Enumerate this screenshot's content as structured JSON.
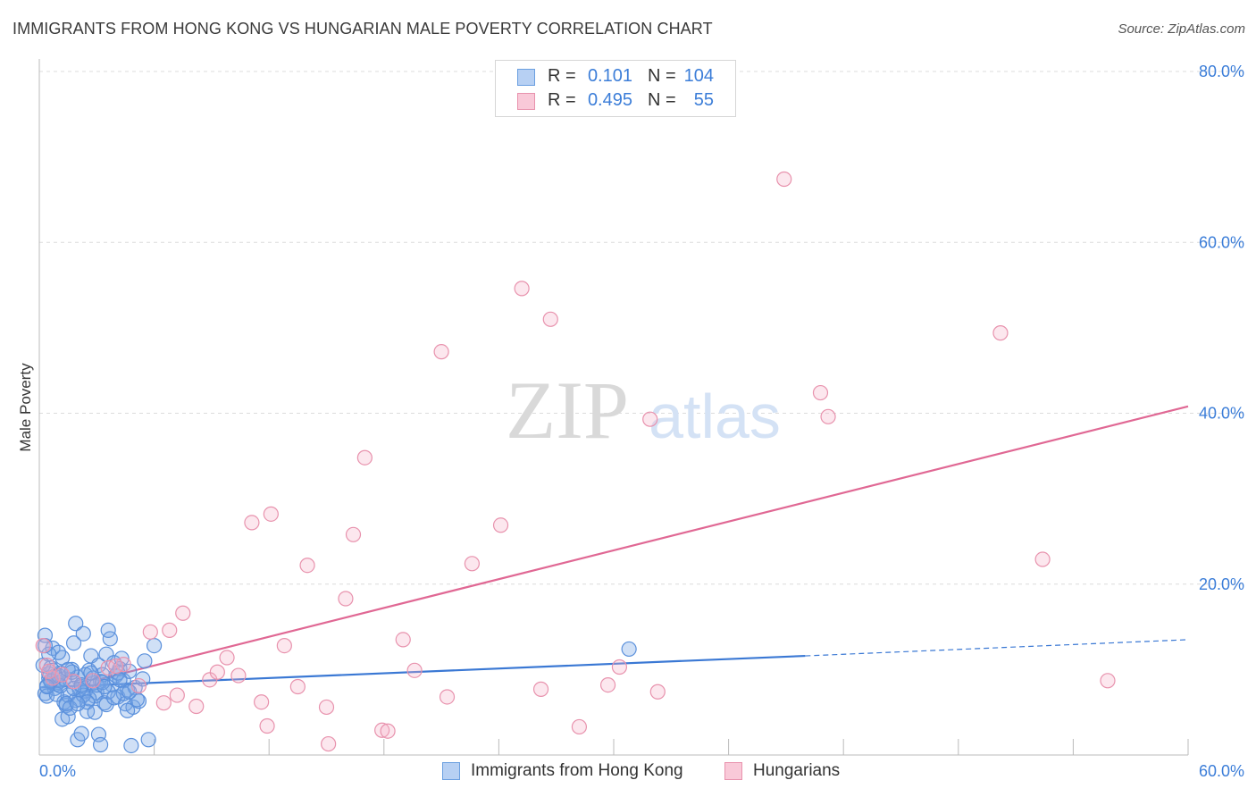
{
  "title": "IMMIGRANTS FROM HONG KONG VS HUNGARIAN MALE POVERTY CORRELATION CHART",
  "source": "Source: ZipAtlas.com",
  "watermark": {
    "zip": "ZIP",
    "atlas": "atlas"
  },
  "legend_top": [
    {
      "r_label": "R =",
      "r_value": "0.101",
      "n_label": "N =",
      "n_value": "104",
      "fill": "#b7d0f3",
      "stroke": "#6a9fe0"
    },
    {
      "r_label": "R =",
      "r_value": "0.495",
      "n_label": "N =",
      "n_value": "55",
      "fill": "#f9c9d8",
      "stroke": "#e892ad"
    }
  ],
  "legend_bottom": [
    {
      "label": "Immigrants from Hong Kong",
      "fill": "#b7d0f3",
      "stroke": "#6a9fe0"
    },
    {
      "label": "Hungarians",
      "fill": "#f9c9d8",
      "stroke": "#e892ad"
    }
  ],
  "chart_data": {
    "type": "scatter",
    "title": "IMMIGRANTS FROM HONG KONG VS HUNGARIAN MALE POVERTY CORRELATION CHART",
    "xlabel": "",
    "ylabel": "Male Poverty",
    "xlim": [
      0,
      60
    ],
    "ylim": [
      0,
      80
    ],
    "x_tick_labels": [
      "0.0%",
      "60.0%"
    ],
    "y_ticks": [
      20,
      40,
      60,
      80
    ],
    "y_tick_labels": [
      "20.0%",
      "40.0%",
      "60.0%",
      "80.0%"
    ],
    "grid": true,
    "series": [
      {
        "name": "Immigrants from Hong Kong",
        "color": "#3a78d4",
        "point_fill": "rgba(120,165,230,0.35)",
        "point_stroke": "#5a90dc",
        "trend": {
          "x0": 0,
          "y0": 7.9,
          "x1": 40,
          "y1": 11.6,
          "dashed_to": 60,
          "dashed_y": 13.5
        },
        "points": [
          [
            0.3,
            7.2
          ],
          [
            0.4,
            8.1
          ],
          [
            0.5,
            9.0
          ],
          [
            0.6,
            10.2
          ],
          [
            0.7,
            12.5
          ],
          [
            0.3,
            14.0
          ],
          [
            0.8,
            7.8
          ],
          [
            1.0,
            8.5
          ],
          [
            1.1,
            9.6
          ],
          [
            1.2,
            11.4
          ],
          [
            1.3,
            6.2
          ],
          [
            1.4,
            5.8
          ],
          [
            1.5,
            7.0
          ],
          [
            1.6,
            8.8
          ],
          [
            1.7,
            10.0
          ],
          [
            1.8,
            13.1
          ],
          [
            1.9,
            15.4
          ],
          [
            2.0,
            9.1
          ],
          [
            2.1,
            6.5
          ],
          [
            2.2,
            8.0
          ],
          [
            2.3,
            14.2
          ],
          [
            2.4,
            7.5
          ],
          [
            2.5,
            5.1
          ],
          [
            2.6,
            9.9
          ],
          [
            2.7,
            11.6
          ],
          [
            2.8,
            8.4
          ],
          [
            2.9,
            6.9
          ],
          [
            3.0,
            7.3
          ],
          [
            3.1,
            10.5
          ],
          [
            3.2,
            8.6
          ],
          [
            3.3,
            9.4
          ],
          [
            3.4,
            6.1
          ],
          [
            3.5,
            11.8
          ],
          [
            3.6,
            14.6
          ],
          [
            3.7,
            13.6
          ],
          [
            3.8,
            8.2
          ],
          [
            3.9,
            10.8
          ],
          [
            4.0,
            9.3
          ],
          [
            4.1,
            6.8
          ],
          [
            4.2,
            10.1
          ],
          [
            4.3,
            11.3
          ],
          [
            4.4,
            8.7
          ],
          [
            4.5,
            6.0
          ],
          [
            4.6,
            7.6
          ],
          [
            4.7,
            9.8
          ],
          [
            4.9,
            5.6
          ],
          [
            5.0,
            7.9
          ],
          [
            5.2,
            6.3
          ],
          [
            5.4,
            8.9
          ],
          [
            5.5,
            11.0
          ],
          [
            0.5,
            9.5
          ],
          [
            0.9,
            8.3
          ],
          [
            1.2,
            4.2
          ],
          [
            1.5,
            4.5
          ],
          [
            2.0,
            1.8
          ],
          [
            2.2,
            2.5
          ],
          [
            3.1,
            2.4
          ],
          [
            3.2,
            1.2
          ],
          [
            4.8,
            1.1
          ],
          [
            5.7,
            1.8
          ],
          [
            6.0,
            12.8
          ],
          [
            1.0,
            12.0
          ],
          [
            0.6,
            8.6
          ],
          [
            0.8,
            9.2
          ],
          [
            1.3,
            8.9
          ],
          [
            1.7,
            9.7
          ],
          [
            2.4,
            9.4
          ],
          [
            2.8,
            9.0
          ],
          [
            0.4,
            6.9
          ],
          [
            0.9,
            7.1
          ],
          [
            1.9,
            6.4
          ],
          [
            2.1,
            7.7
          ],
          [
            2.6,
            6.6
          ],
          [
            3.5,
            5.9
          ],
          [
            0.5,
            11.8
          ],
          [
            1.4,
            6.0
          ],
          [
            1.6,
            5.5
          ],
          [
            2.3,
            7.0
          ],
          [
            3.0,
            8.2
          ],
          [
            3.6,
            7.4
          ],
          [
            4.1,
            9.6
          ],
          [
            4.6,
            5.2
          ],
          [
            5.1,
            6.5
          ],
          [
            0.7,
            9.9
          ],
          [
            1.1,
            8.1
          ],
          [
            2.5,
            6.2
          ],
          [
            3.3,
            8.5
          ],
          [
            4.4,
            7.2
          ],
          [
            0.2,
            10.5
          ],
          [
            0.3,
            12.8
          ],
          [
            0.6,
            8.7
          ],
          [
            1.0,
            9.3
          ],
          [
            1.8,
            7.8
          ],
          [
            2.2,
            8.2
          ],
          [
            2.7,
            9.6
          ],
          [
            3.4,
            8.0
          ],
          [
            3.9,
            6.7
          ],
          [
            4.2,
            8.8
          ],
          [
            4.7,
            7.4
          ],
          [
            1.5,
            10.0
          ],
          [
            2.0,
            6.0
          ],
          [
            2.9,
            5.0
          ],
          [
            30.8,
            12.4
          ],
          [
            0.4,
            8.0
          ]
        ]
      },
      {
        "name": "Hungarians",
        "color": "#e06894",
        "point_fill": "rgba(245,175,200,0.30)",
        "point_stroke": "#e892ad",
        "trend": {
          "x0": 3.2,
          "y0": 8.9,
          "x1": 60,
          "y1": 40.8
        },
        "points": [
          [
            0.2,
            12.8
          ],
          [
            0.4,
            10.5
          ],
          [
            0.7,
            9.0
          ],
          [
            1.2,
            9.4
          ],
          [
            2.8,
            8.7
          ],
          [
            3.6,
            10.2
          ],
          [
            4.4,
            10.6
          ],
          [
            5.2,
            8.1
          ],
          [
            5.8,
            14.4
          ],
          [
            6.5,
            6.1
          ],
          [
            6.8,
            14.6
          ],
          [
            7.2,
            7.0
          ],
          [
            7.5,
            16.6
          ],
          [
            8.2,
            5.7
          ],
          [
            8.9,
            8.8
          ],
          [
            9.3,
            9.7
          ],
          [
            9.8,
            11.4
          ],
          [
            10.4,
            9.3
          ],
          [
            11.1,
            27.2
          ],
          [
            11.6,
            6.2
          ],
          [
            11.9,
            3.4
          ],
          [
            12.1,
            28.2
          ],
          [
            12.8,
            12.8
          ],
          [
            13.5,
            8.0
          ],
          [
            14.0,
            22.2
          ],
          [
            15.0,
            5.6
          ],
          [
            15.1,
            1.3
          ],
          [
            16.0,
            18.3
          ],
          [
            16.4,
            25.8
          ],
          [
            17.0,
            34.8
          ],
          [
            17.9,
            2.9
          ],
          [
            18.2,
            2.8
          ],
          [
            19.0,
            13.5
          ],
          [
            19.6,
            9.9
          ],
          [
            21.0,
            47.2
          ],
          [
            21.3,
            6.8
          ],
          [
            22.6,
            22.4
          ],
          [
            24.1,
            26.9
          ],
          [
            25.2,
            54.6
          ],
          [
            26.2,
            7.7
          ],
          [
            26.7,
            51.0
          ],
          [
            28.2,
            3.3
          ],
          [
            29.7,
            8.2
          ],
          [
            30.3,
            10.3
          ],
          [
            31.9,
            39.3
          ],
          [
            32.3,
            7.4
          ],
          [
            38.9,
            67.4
          ],
          [
            40.8,
            42.4
          ],
          [
            41.2,
            39.6
          ],
          [
            50.2,
            49.4
          ],
          [
            52.4,
            22.9
          ],
          [
            55.8,
            8.7
          ],
          [
            0.5,
            9.8
          ],
          [
            1.8,
            8.6
          ],
          [
            4.0,
            10.4
          ]
        ]
      }
    ]
  }
}
